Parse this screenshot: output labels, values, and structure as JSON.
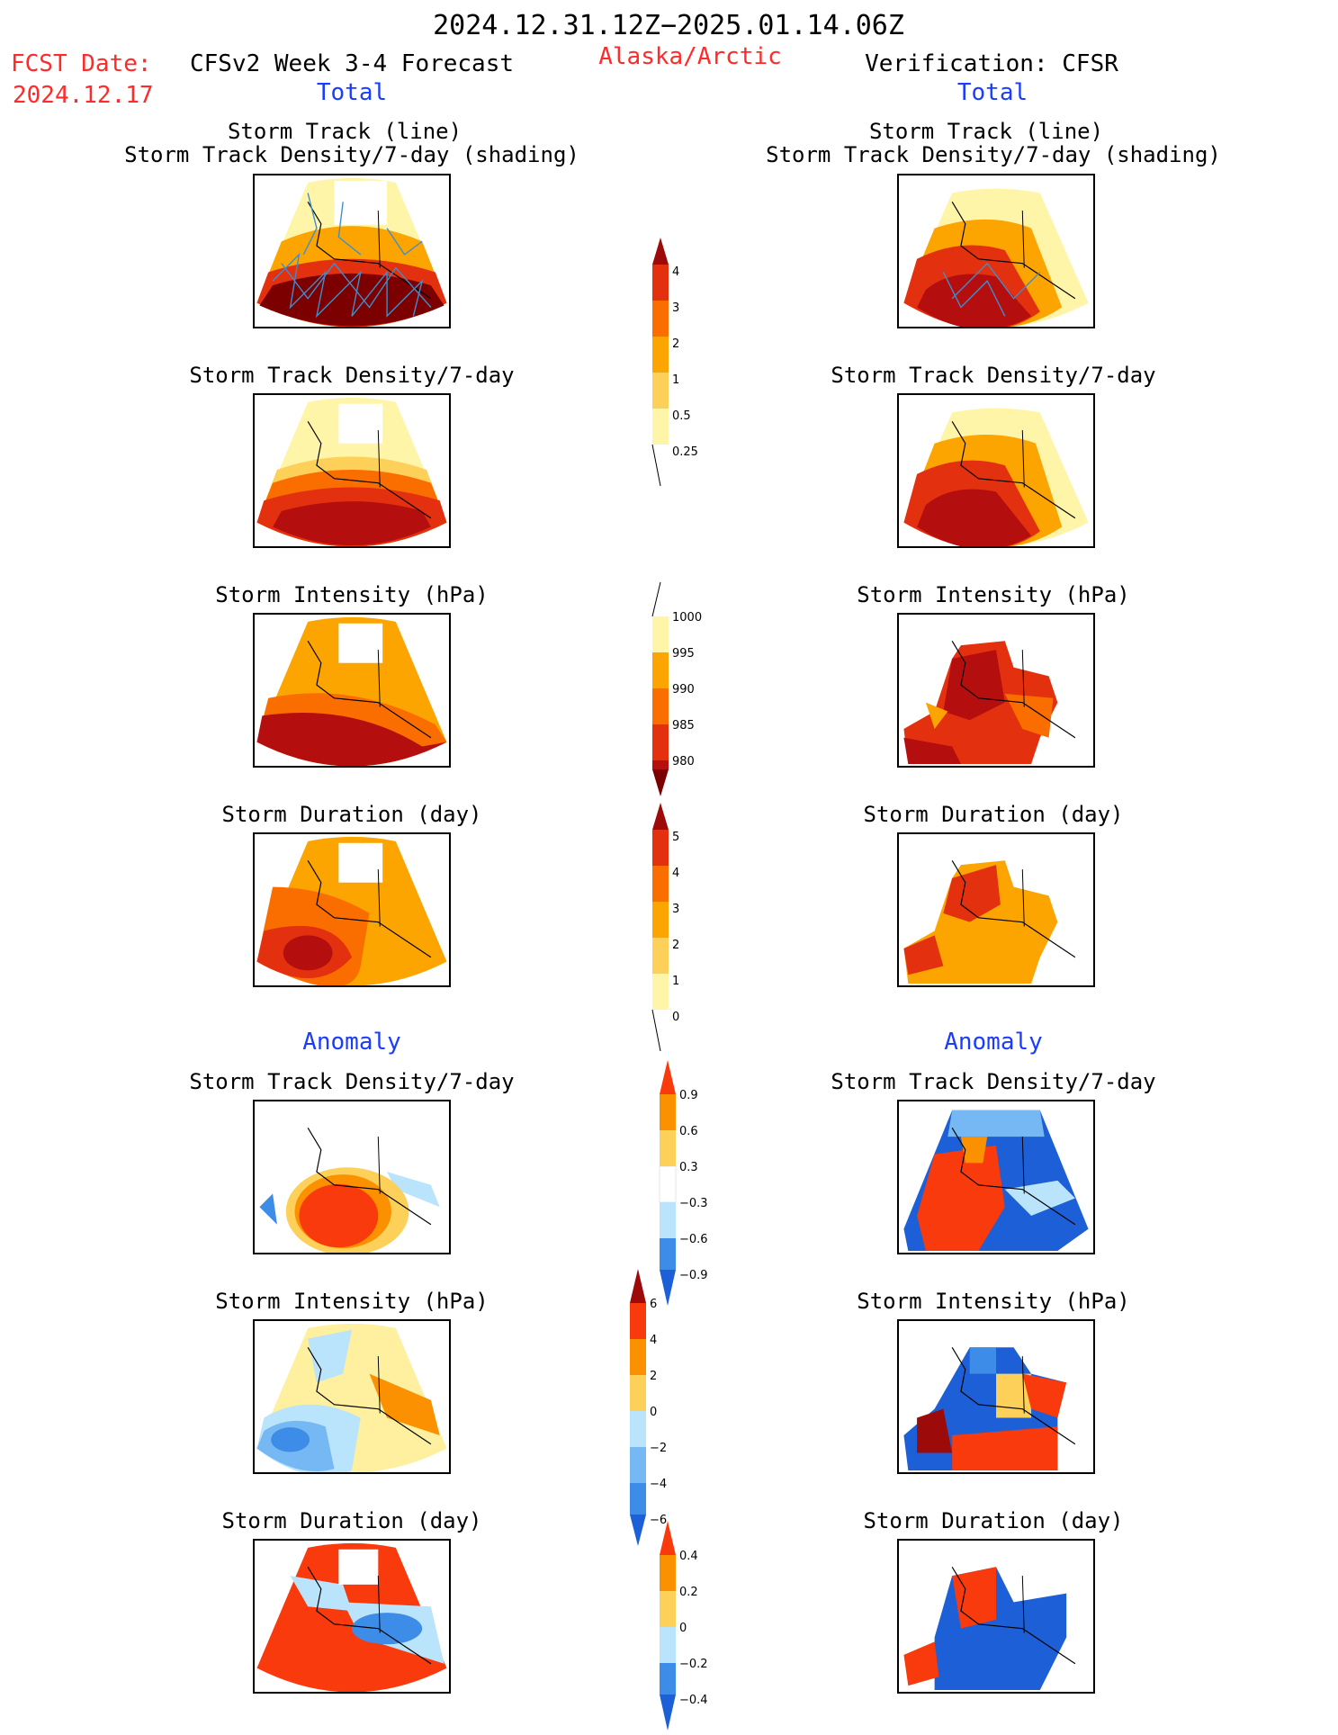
{
  "header": {
    "date_range": "2024.12.31.12Z−2025.01.14.06Z",
    "fcst_label": "FCST Date:",
    "fcst_date": "2024.12.17",
    "forecast_title": "CFSv2 Week 3-4 Forecast",
    "region": "Alaska/Arctic",
    "verification": "Verification: CFSR"
  },
  "sections": {
    "total": "Total",
    "anomaly": "Anomaly"
  },
  "titles": {
    "track_line": "Storm Track (line)",
    "track_density_shading": "Storm Track Density/7-day (shading)",
    "track_density": "Storm Track Density/7-day",
    "intensity": "Storm Intensity (hPa)",
    "duration": "Storm Duration (day)"
  },
  "colorbars": [
    {
      "name": "track-density-total",
      "labels": [
        "4",
        "3",
        "2",
        "1",
        "0.5",
        "0.25"
      ]
    },
    {
      "name": "intensity-total",
      "labels": [
        "1000",
        "995",
        "990",
        "985",
        "980"
      ]
    },
    {
      "name": "duration-total",
      "labels": [
        "5",
        "4",
        "3",
        "2",
        "1",
        "0"
      ]
    },
    {
      "name": "track-density-anomaly",
      "labels": [
        "0.9",
        "0.6",
        "0.3",
        "−0.3",
        "−0.6",
        "−0.9"
      ]
    },
    {
      "name": "intensity-anomaly",
      "labels": [
        "6",
        "4",
        "2",
        "0",
        "−2",
        "−4",
        "−6"
      ]
    },
    {
      "name": "duration-anomaly",
      "labels": [
        "0.4",
        "0.2",
        "0",
        "−0.2",
        "−0.4"
      ]
    }
  ],
  "colors": {
    "warm": [
      "#fff5a8",
      "#fdd05a",
      "#fca500",
      "#fa6e00",
      "#e3300f",
      "#b50e0e",
      "#7d0000"
    ],
    "anom": [
      "#1c5fd6",
      "#3c8ce8",
      "#76b8f3",
      "#b9e4fb",
      "#ffffff",
      "#fff0a0",
      "#fcc34a",
      "#fc9100",
      "#f83a0c",
      "#9c0a0a"
    ],
    "track_line": "#3b8fd0",
    "title_red": "#ff2a2a",
    "title_blue": "#1a3cff"
  }
}
